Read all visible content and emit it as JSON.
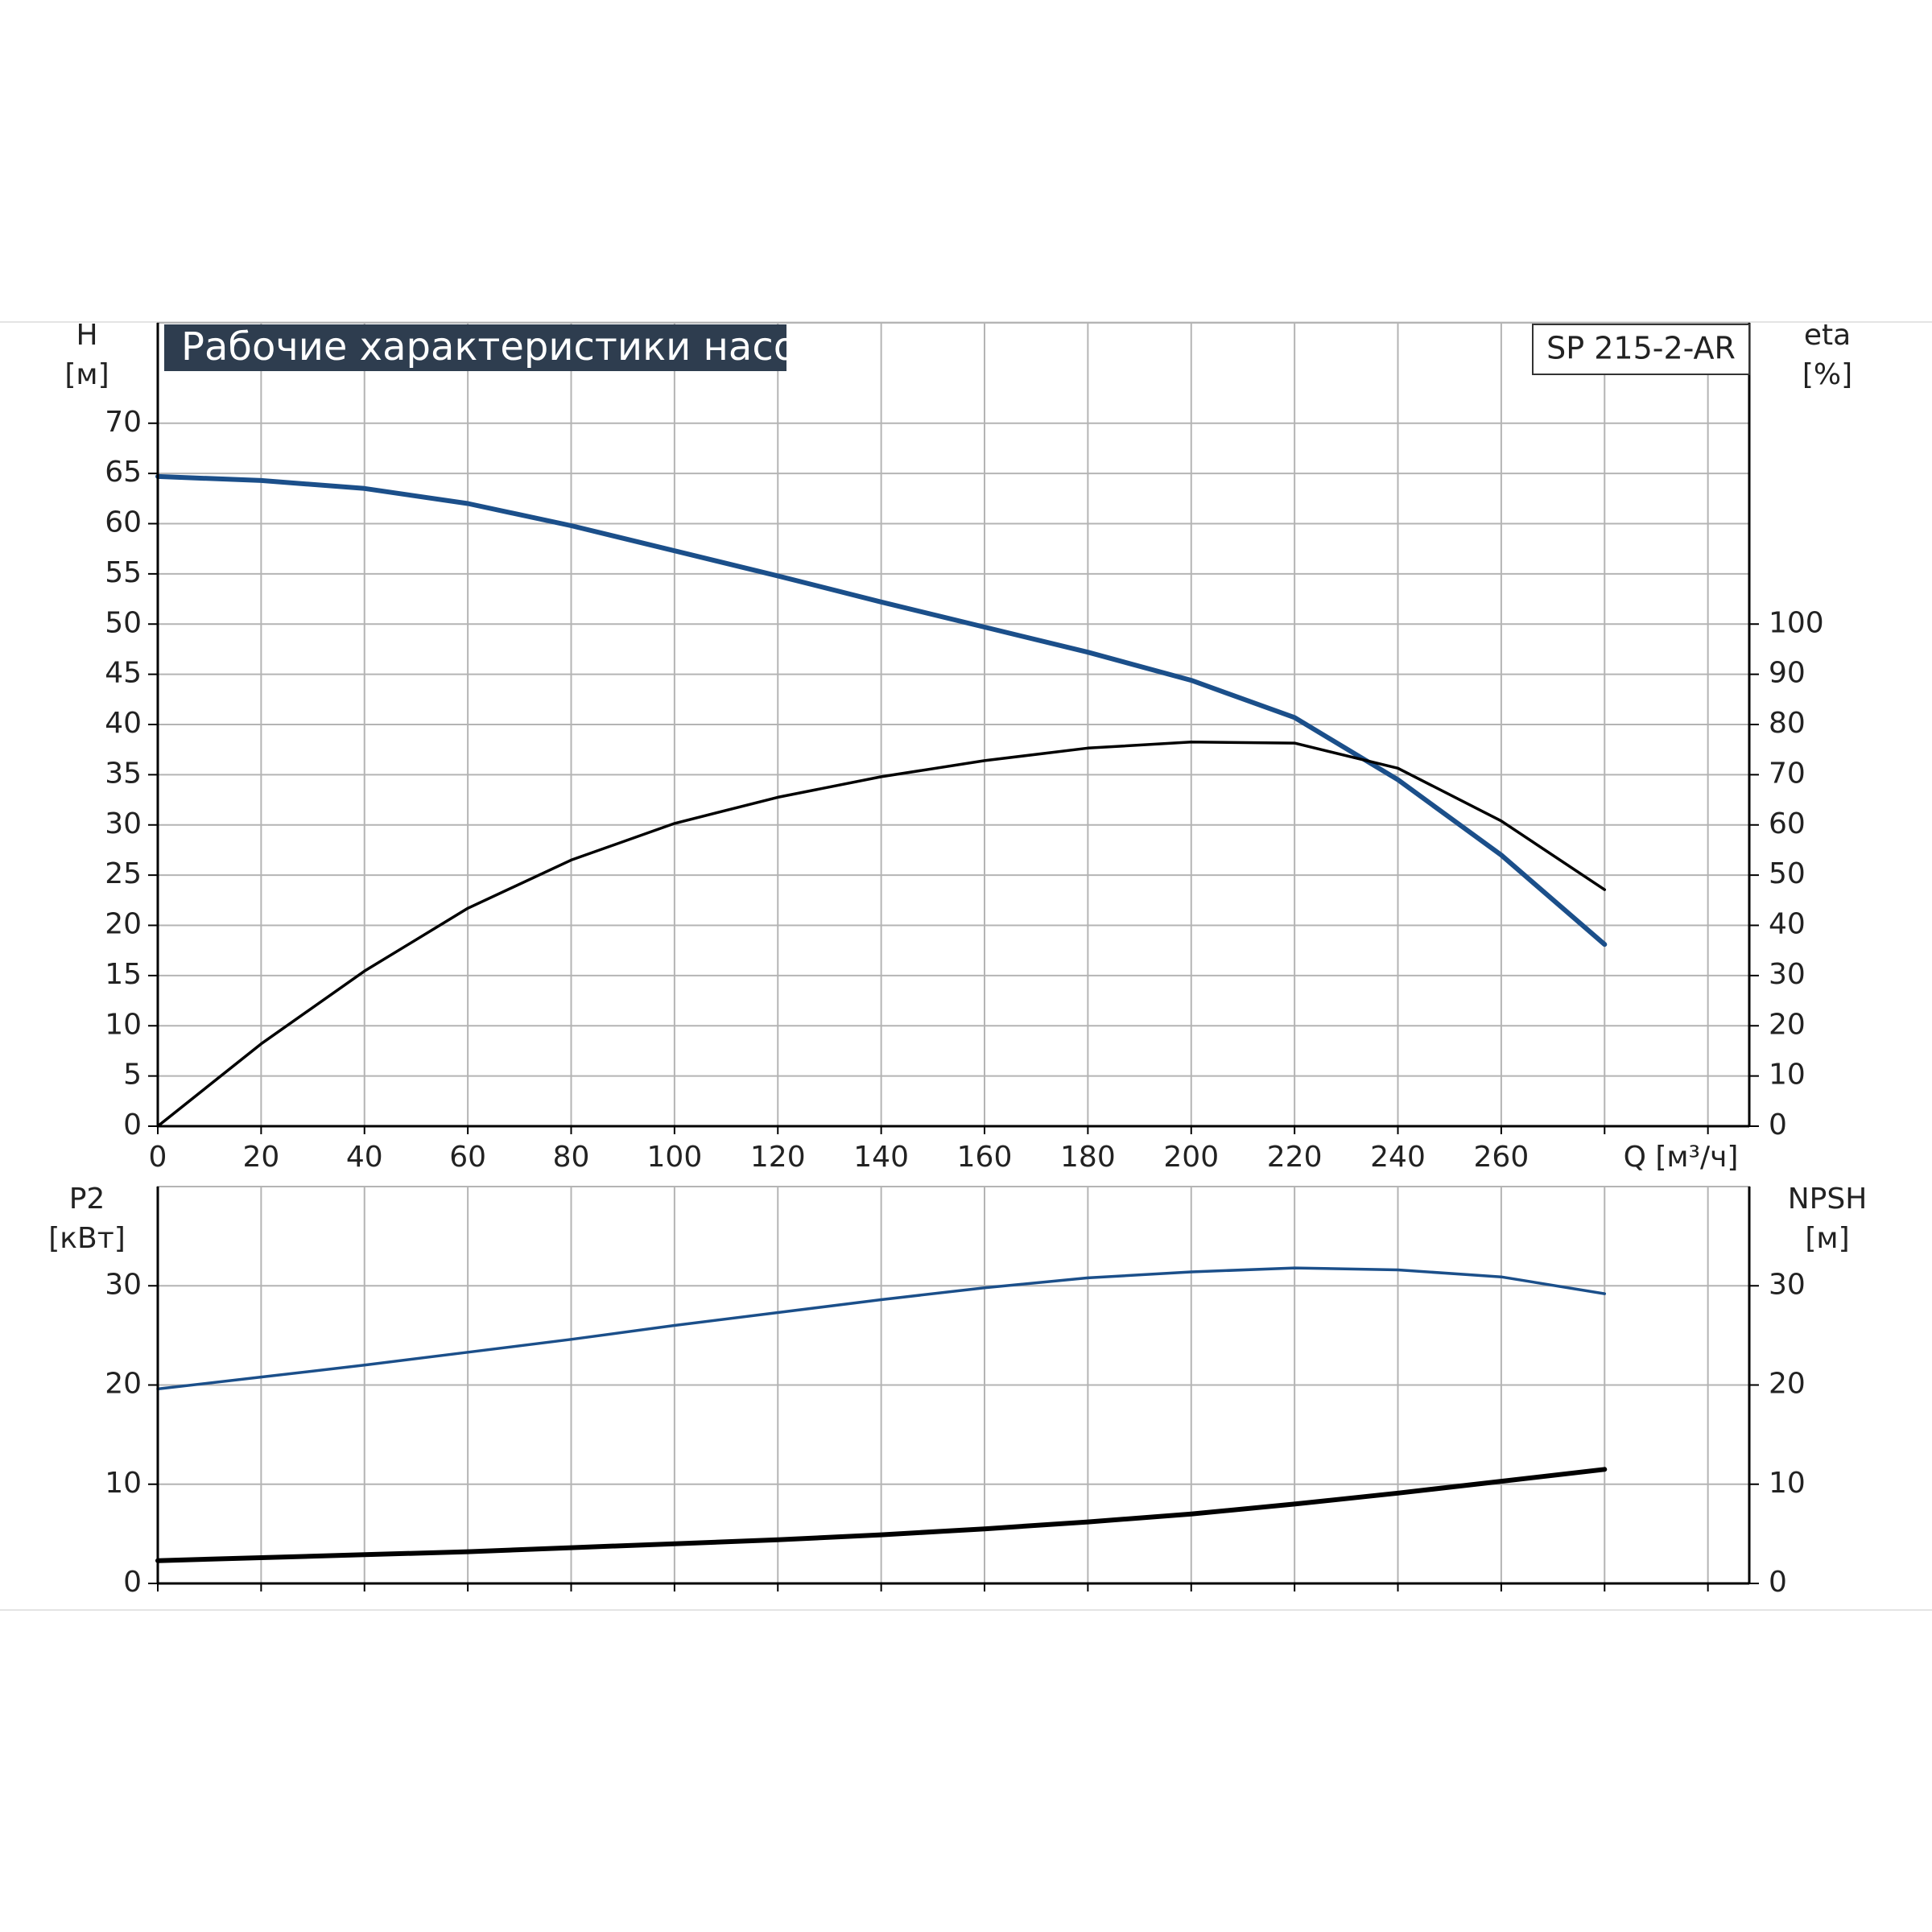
{
  "chart_data": [
    {
      "type": "line",
      "title": "Рабочие характеристики насоса",
      "model": "SP 215-2-AR",
      "xlabel": "Q [м³/ч]",
      "ylabel": "H",
      "yunit": "[м]",
      "y2label": "eta",
      "y2unit": "[%]",
      "x": [
        0,
        20,
        40,
        60,
        80,
        100,
        120,
        140,
        160,
        180,
        200,
        220,
        240,
        260,
        280
      ],
      "series": [
        {
          "name": "H",
          "color": "#1b4f8a",
          "width": 6,
          "values": [
            64.7,
            64.3,
            63.5,
            62,
            59.8,
            57.3,
            54.8,
            52.2,
            49.7,
            47.2,
            44.4,
            40.7,
            34.5,
            27,
            18.1
          ]
        },
        {
          "name": "eta",
          "color": "#000000",
          "width": 3.5,
          "axis": "y2",
          "values": [
            0,
            16.4,
            30.9,
            43.4,
            53,
            60.3,
            65.5,
            69.6,
            72.8,
            75.3,
            76.5,
            76.3,
            71.3,
            60.8,
            47.1
          ]
        }
      ],
      "xlim": [
        0,
        308
      ],
      "xticks": [
        0,
        20,
        40,
        60,
        80,
        100,
        120,
        140,
        160,
        180,
        200,
        220,
        240,
        260,
        {
          "value": 280,
          "label": null
        },
        {
          "value": 300,
          "label": null
        }
      ],
      "ylim": [
        0,
        80
      ],
      "yticks": [
        0,
        5,
        10,
        15,
        20,
        25,
        30,
        35,
        40,
        45,
        50,
        55,
        60,
        65,
        70
      ],
      "y2lim": [
        0,
        160
      ],
      "y2ticks": [
        0,
        10,
        20,
        30,
        40,
        50,
        60,
        70,
        80,
        90,
        100
      ],
      "grid": true,
      "xtick_labels": true
    },
    {
      "type": "line",
      "ylabel": "P2",
      "yunit": "[кВт]",
      "y2label": "NPSH",
      "y2unit": "[м]",
      "x": [
        0,
        20,
        40,
        60,
        80,
        100,
        120,
        140,
        160,
        180,
        200,
        220,
        240,
        260,
        280
      ],
      "series": [
        {
          "name": "P2",
          "color": "#1b4f8a",
          "width": 3.5,
          "values": [
            19.6,
            20.8,
            22,
            23.3,
            24.6,
            26,
            27.3,
            28.6,
            29.8,
            30.8,
            31.4,
            31.8,
            31.6,
            30.9,
            29.2
          ]
        },
        {
          "name": "NPSH",
          "color": "#000000",
          "width": 6,
          "axis": "y2",
          "values": [
            2.3,
            2.6,
            2.9,
            3.2,
            3.6,
            4,
            4.4,
            4.9,
            5.5,
            6.2,
            7,
            8,
            9.1,
            10.3,
            11.5
          ]
        }
      ],
      "xlim": [
        0,
        308
      ],
      "xticks": [
        0,
        20,
        40,
        60,
        80,
        100,
        120,
        140,
        160,
        180,
        200,
        220,
        240,
        260,
        280,
        300
      ],
      "ylim": [
        0,
        40
      ],
      "yticks": [
        0,
        10,
        20,
        30
      ],
      "y2lim": [
        0,
        40
      ],
      "y2ticks": [
        0,
        10,
        20,
        30
      ],
      "grid": true,
      "xtick_labels": false
    }
  ]
}
